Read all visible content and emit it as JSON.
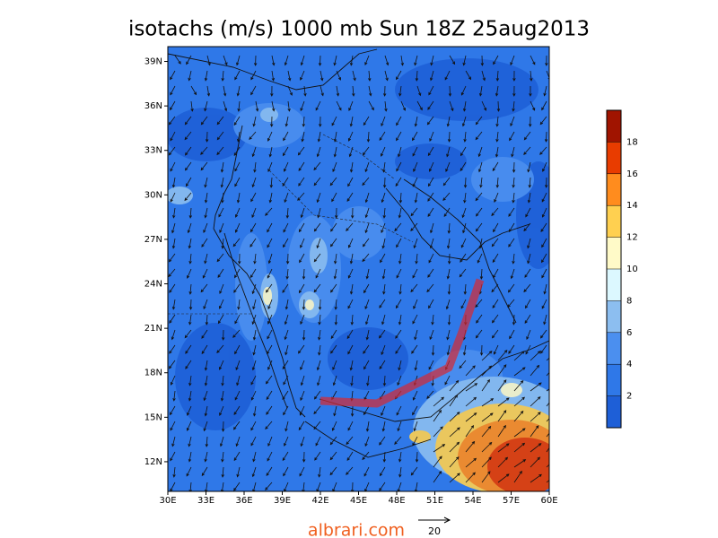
{
  "title": "isotachs (m/s) 1000 mb Sun 18Z 25aug2013",
  "map": {
    "lonlim": [
      30,
      60
    ],
    "latlim": [
      10,
      40
    ],
    "lon_ticks": [
      {
        "value": 30,
        "label": "30E"
      },
      {
        "value": 33,
        "label": "33E"
      },
      {
        "value": 36,
        "label": "36E"
      },
      {
        "value": 39,
        "label": "39E"
      },
      {
        "value": 42,
        "label": "42E"
      },
      {
        "value": 45,
        "label": "45E"
      },
      {
        "value": 48,
        "label": "48E"
      },
      {
        "value": 51,
        "label": "51E"
      },
      {
        "value": 54,
        "label": "54E"
      },
      {
        "value": 57,
        "label": "57E"
      },
      {
        "value": 60,
        "label": "60E"
      }
    ],
    "lat_ticks": [
      {
        "value": 12,
        "label": "12N"
      },
      {
        "value": 15,
        "label": "15N"
      },
      {
        "value": 18,
        "label": "18N"
      },
      {
        "value": 21,
        "label": "21N"
      },
      {
        "value": 24,
        "label": "24N"
      },
      {
        "value": 27,
        "label": "27N"
      },
      {
        "value": 30,
        "label": "30N"
      },
      {
        "value": 33,
        "label": "33N"
      },
      {
        "value": 36,
        "label": "36N"
      },
      {
        "value": 39,
        "label": "39N"
      }
    ]
  },
  "colorbar": {
    "limits": [
      0,
      20
    ],
    "levels": [
      2,
      4,
      6,
      8,
      10,
      12,
      14,
      16,
      18
    ],
    "colors": [
      "#1e5fd7",
      "#2f78e8",
      "#4b8fef",
      "#8cbef0",
      "#dcf8ff",
      "#fffac8",
      "#ffd050",
      "#ff8c1e",
      "#e83c00",
      "#a01400"
    ]
  },
  "watermark": "albrari.com",
  "vector_reference": "20"
}
